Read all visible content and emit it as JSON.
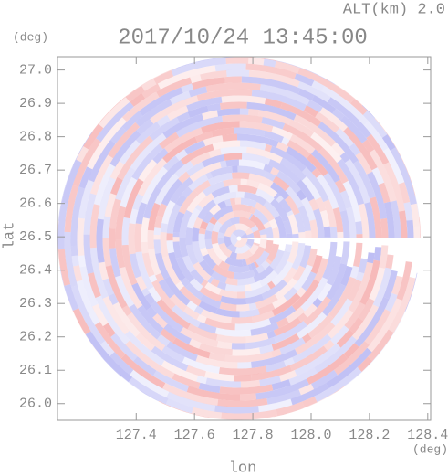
{
  "chart_data": {
    "type": "field",
    "title": "2017/10/24 13:45:00",
    "subtitle": "ALT(km) 2.0",
    "x_label": "lon",
    "y_label": "lat",
    "x_unit": "(deg)",
    "y_unit": "(deg)",
    "xlim": [
      127.13,
      128.41
    ],
    "ylim": [
      25.95,
      27.04
    ],
    "xticks": [
      127.4,
      127.6,
      127.8,
      {
        "value": 128.0,
        "label": "128.0"
      },
      128.2,
      128.4
    ],
    "yticks": [
      {
        "value": 26.0,
        "label": "26.0"
      },
      26.1,
      26.2,
      26.3,
      26.4,
      26.5,
      26.6,
      26.7,
      26.8,
      26.9,
      {
        "value": 27.0,
        "label": "27.0"
      }
    ]
  }
}
